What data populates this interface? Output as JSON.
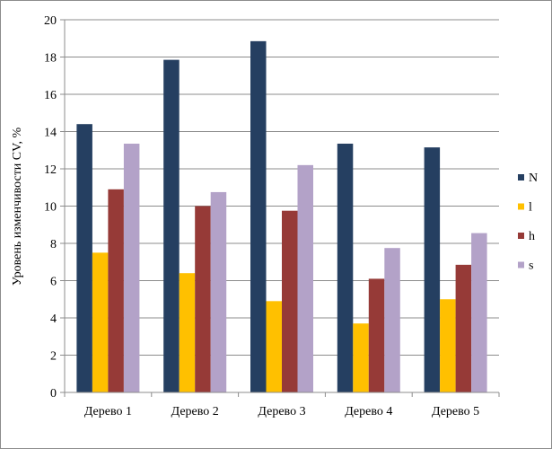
{
  "chart_data": {
    "type": "bar",
    "title": "",
    "xlabel": "",
    "ylabel": "Уровень изменчивости CV, %",
    "ylim": [
      0,
      20
    ],
    "yticks": [
      0,
      2,
      4,
      6,
      8,
      10,
      12,
      14,
      16,
      18,
      20
    ],
    "grid": true,
    "legend_position": "right",
    "categories": [
      "Дерево 1",
      "Дерево 2",
      "Дерево 3",
      "Дерево 4",
      "Дерево 5"
    ],
    "series": [
      {
        "name": "N",
        "color": "#253f61",
        "values": [
          14.4,
          17.85,
          18.85,
          13.35,
          13.15
        ]
      },
      {
        "name": "l",
        "color": "#ffc000",
        "values": [
          7.5,
          6.4,
          4.9,
          3.7,
          5.0
        ]
      },
      {
        "name": "h",
        "color": "#963a37",
        "values": [
          10.9,
          10.0,
          9.75,
          6.1,
          6.85
        ]
      },
      {
        "name": "s",
        "color": "#b3a2c8",
        "values": [
          13.35,
          10.75,
          12.2,
          7.75,
          8.55
        ]
      }
    ]
  }
}
